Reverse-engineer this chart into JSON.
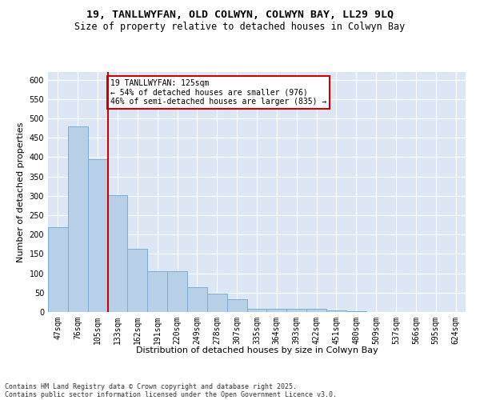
{
  "title1": "19, TANLLWYFAN, OLD COLWYN, COLWYN BAY, LL29 9LQ",
  "title2": "Size of property relative to detached houses in Colwyn Bay",
  "xlabel": "Distribution of detached houses by size in Colwyn Bay",
  "ylabel": "Number of detached properties",
  "categories": [
    "47sqm",
    "76sqm",
    "105sqm",
    "133sqm",
    "162sqm",
    "191sqm",
    "220sqm",
    "249sqm",
    "278sqm",
    "307sqm",
    "335sqm",
    "364sqm",
    "393sqm",
    "422sqm",
    "451sqm",
    "480sqm",
    "509sqm",
    "537sqm",
    "566sqm",
    "595sqm",
    "624sqm"
  ],
  "values": [
    220,
    480,
    395,
    302,
    163,
    106,
    106,
    64,
    47,
    33,
    8,
    8,
    8,
    8,
    5,
    2,
    0,
    0,
    0,
    0,
    0
  ],
  "bar_color": "#b8cfe8",
  "bar_edge_color": "#7aadd4",
  "property_line_x": 2.5,
  "annotation_text": "19 TANLLWYFAN: 125sqm\n← 54% of detached houses are smaller (976)\n46% of semi-detached houses are larger (835) →",
  "annotation_box_color": "#ffffff",
  "annotation_box_edge": "#cc0000",
  "line_color": "#cc0000",
  "ylim": [
    0,
    620
  ],
  "yticks": [
    0,
    50,
    100,
    150,
    200,
    250,
    300,
    350,
    400,
    450,
    500,
    550,
    600
  ],
  "background_color": "#dce6f5",
  "grid_color": "#ffffff",
  "fig_background": "#ffffff",
  "footer1": "Contains HM Land Registry data © Crown copyright and database right 2025.",
  "footer2": "Contains public sector information licensed under the Open Government Licence v3.0.",
  "title_fontsize": 9.5,
  "subtitle_fontsize": 8.5,
  "axis_label_fontsize": 8,
  "tick_fontsize": 7,
  "footer_fontsize": 6
}
